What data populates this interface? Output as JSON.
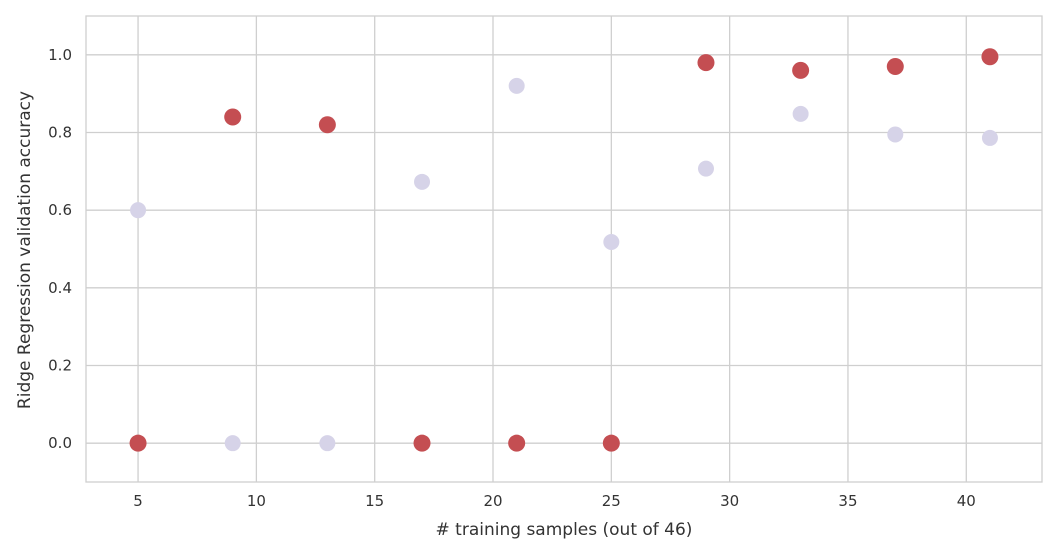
{
  "chart_data": {
    "type": "scatter",
    "title": "",
    "xlabel": "# training samples (out of 46)",
    "ylabel": "Ridge Regression validation accuracy",
    "xlim": [
      2.8,
      43.2
    ],
    "ylim": [
      -0.1,
      1.1
    ],
    "xticks": [
      5,
      10,
      15,
      20,
      25,
      30,
      35,
      40
    ],
    "yticks": [
      0.0,
      0.2,
      0.4,
      0.6,
      0.8,
      1.0
    ],
    "xtick_labels": [
      "5",
      "10",
      "15",
      "20",
      "25",
      "30",
      "35",
      "40"
    ],
    "ytick_labels": [
      "0.0",
      "0.2",
      "0.4",
      "0.6",
      "0.8",
      "1.0"
    ],
    "grid": true,
    "legend": false,
    "series": [
      {
        "color": "#d6d3e8",
        "points": [
          {
            "x": 5,
            "y": 0.6
          },
          {
            "x": 9,
            "y": 0.0
          },
          {
            "x": 13,
            "y": 0.0
          },
          {
            "x": 17,
            "y": 0.673
          },
          {
            "x": 21,
            "y": 0.92
          },
          {
            "x": 25,
            "y": 0.518
          },
          {
            "x": 29,
            "y": 0.707
          },
          {
            "x": 33,
            "y": 0.848
          },
          {
            "x": 37,
            "y": 0.795
          },
          {
            "x": 41,
            "y": 0.786
          }
        ]
      },
      {
        "color": "#c44e52",
        "points": [
          {
            "x": 5,
            "y": 0.0
          },
          {
            "x": 9,
            "y": 0.84
          },
          {
            "x": 13,
            "y": 0.82
          },
          {
            "x": 17,
            "y": 0.0
          },
          {
            "x": 21,
            "y": 0.0
          },
          {
            "x": 25,
            "y": 0.0
          },
          {
            "x": 29,
            "y": 0.98
          },
          {
            "x": 33,
            "y": 0.96
          },
          {
            "x": 37,
            "y": 0.97
          },
          {
            "x": 41,
            "y": 0.995
          }
        ]
      }
    ]
  }
}
